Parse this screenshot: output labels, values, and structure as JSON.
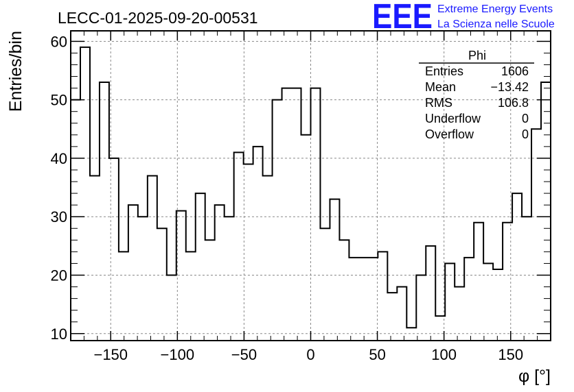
{
  "header": {
    "title": "LECC-01-2025-09-20-00531",
    "logo": "EEE",
    "logo_line1": "Extreme Energy Events",
    "logo_line2": "La Scienza nelle Scuole",
    "logo_color": "#1a1aff"
  },
  "stats": {
    "name": "Phi",
    "rows": [
      {
        "label": "Entries",
        "value": "1606"
      },
      {
        "label": "Mean",
        "value": "−13.42"
      },
      {
        "label": "RMS",
        "value": "106.8"
      },
      {
        "label": "Underflow",
        "value": "0"
      },
      {
        "label": "Overflow",
        "value": "0"
      }
    ]
  },
  "chart_data": {
    "type": "histogram",
    "title": "LECC-01-2025-09-20-00531",
    "xlabel": "φ [°]",
    "ylabel": "Entries/bin",
    "xlim": [
      -180,
      180
    ],
    "ylim": [
      8.8,
      61.8
    ],
    "bin_width": 7.2,
    "x_ticks": [
      -150,
      -100,
      -50,
      0,
      50,
      100,
      150
    ],
    "x_tick_labels": [
      "−150",
      "−100",
      "−50",
      "0",
      "50",
      "100",
      "150"
    ],
    "y_ticks": [
      10,
      20,
      30,
      40,
      50,
      60
    ],
    "y_tick_labels": [
      "10",
      "20",
      "30",
      "40",
      "50",
      "60"
    ],
    "grid": true,
    "line_color": "#000000",
    "values": [
      50,
      59,
      37,
      53,
      40,
      24,
      32,
      30,
      37,
      28,
      20,
      31,
      24,
      34,
      26,
      32,
      30,
      41,
      39,
      42,
      37,
      50,
      52,
      52,
      44,
      52,
      28,
      33,
      26,
      23,
      23,
      23,
      24,
      17,
      18,
      11,
      20,
      25,
      13,
      22,
      18,
      23,
      29,
      22,
      21,
      29,
      34,
      30,
      45,
      53
    ]
  }
}
